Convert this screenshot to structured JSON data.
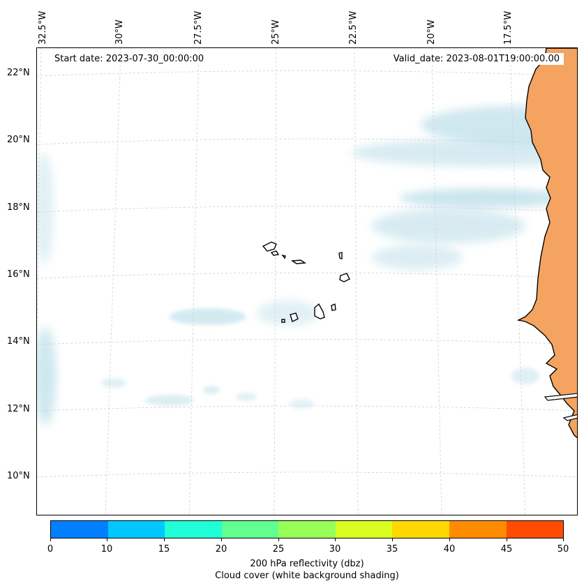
{
  "map": {
    "start_date": "Start date: 2023-07-30_00:00:00",
    "valid_date": "Valid_date: 2023-08-01T19:00:00.00",
    "lon_labels": [
      "32.5°W",
      "30°W",
      "27.5°W",
      "25°W",
      "22.5°W",
      "20°W",
      "17.5°W"
    ],
    "lat_labels": [
      "22°N",
      "20°N",
      "18°N",
      "16°N",
      "14°N",
      "12°N",
      "10°N"
    ],
    "land_color": "#f4a460",
    "cloud_color": "#a9d5e3"
  },
  "colorbar": {
    "ticks": [
      "0",
      "10",
      "15",
      "20",
      "25",
      "30",
      "35",
      "40",
      "45",
      "50"
    ],
    "colors": [
      "#0080ff",
      "#00c8ff",
      "#20ffd8",
      "#60ff90",
      "#98ff58",
      "#d8ff20",
      "#ffd800",
      "#ff8c00",
      "#ff4c00"
    ],
    "label": "200 hPa reflectivity (dbz)",
    "sublabel": "Cloud cover (white background shading)"
  }
}
